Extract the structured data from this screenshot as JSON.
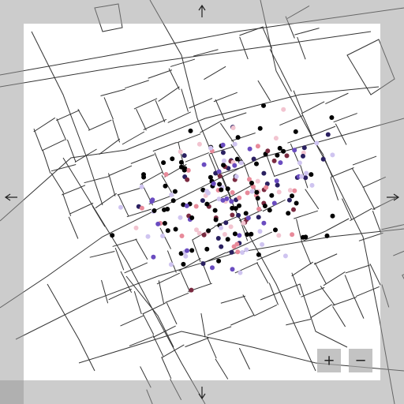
{
  "controls": {
    "zoom_in": "+",
    "zoom_out": "−"
  }
}
